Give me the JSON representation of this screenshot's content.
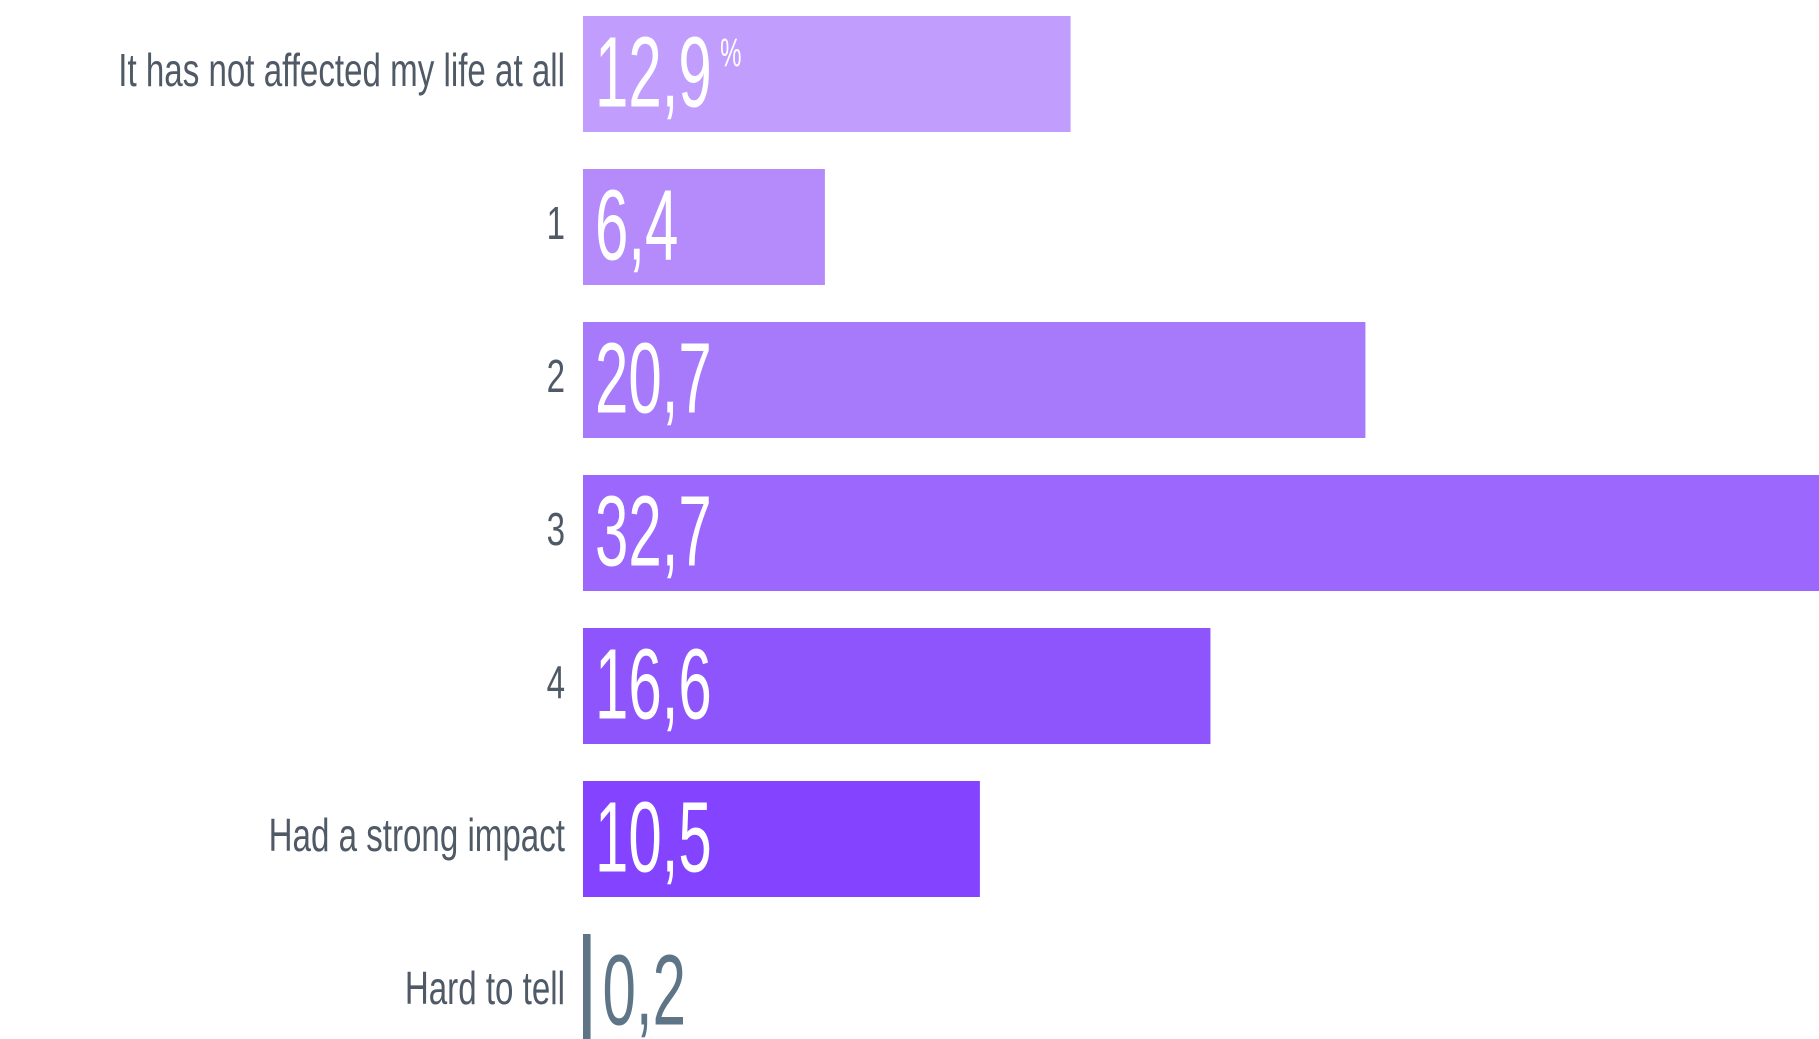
{
  "chart_data": {
    "type": "bar",
    "orientation": "horizontal",
    "categories": [
      "It has not affected my life at all",
      "1",
      "2",
      "3",
      "4",
      "Had a strong impact",
      "Hard to tell"
    ],
    "values": [
      12.9,
      6.4,
      20.7,
      32.7,
      16.6,
      10.5,
      0.2
    ],
    "value_labels": [
      "12,9",
      "6,4",
      "20,7",
      "32,7",
      "16,6",
      "10,5",
      "0,2"
    ],
    "unit_label": "%",
    "colors": [
      "#c19efd",
      "#b58bfc",
      "#a77afc",
      "#9b67fc",
      "#8f55fd",
      "#8443fe",
      "#5d7587"
    ]
  }
}
